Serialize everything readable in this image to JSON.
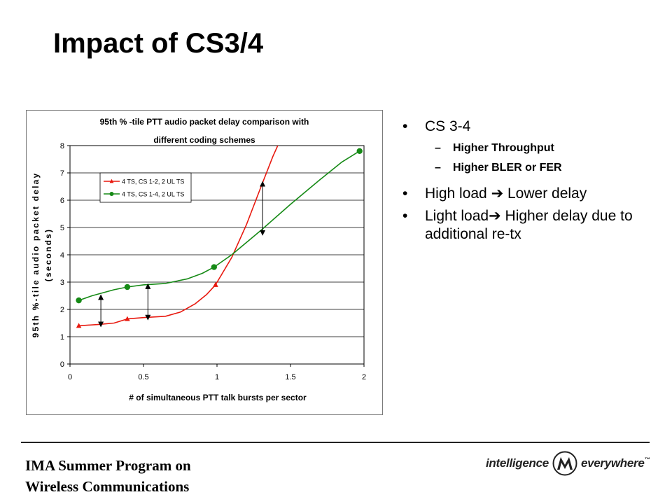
{
  "slide": {
    "title": "Impact of CS3/4",
    "footer": {
      "line1": "IMA Summer Program on",
      "line2": "Wireless Communications"
    },
    "logo": {
      "left_word": "intelligence",
      "right_word": "everywhere",
      "trademark": "™",
      "icon": "motorola-batwing-icon"
    },
    "bullets": [
      {
        "text": "CS 3-4",
        "sub": [
          "Higher Throughput",
          "Higher BLER or FER"
        ]
      },
      {
        "text": "High load  Lower delay",
        "sub": []
      },
      {
        "text": "Light load Higher delay due to additional re-tx",
        "sub": []
      }
    ]
  },
  "bullet_display": {
    "b1": "CS 3-4",
    "b1_sub1": "Higher Throughput",
    "b1_sub2": "Higher BLER or FER",
    "b2_a": "High load ",
    "b2_b": " Lower delay",
    "b3_a": "Light load",
    "b3_b": " Higher delay due to additional re-tx",
    "bullet_glyph": "•",
    "dash_glyph": "–",
    "arrow_glyph": "➔"
  },
  "chart_data": {
    "type": "line",
    "title": "95th % -tile PTT audio packet delay comparison with different coding schemes",
    "title_lines": [
      "95th % -tile PTT audio packet delay comparison with",
      "different coding schemes"
    ],
    "xlabel": "# of simultaneous PTT talk bursts per sector",
    "ylabel_lines": [
      "95th %-tile audio packet delay",
      "(seconds)"
    ],
    "xlim": [
      0,
      2
    ],
    "ylim": [
      0,
      8
    ],
    "xticks": [
      "0",
      "0.5",
      "1",
      "1.5",
      "2"
    ],
    "xtick_values": [
      0,
      0.5,
      1,
      1.5,
      2
    ],
    "yticks": [
      "0",
      "1",
      "2",
      "3",
      "4",
      "5",
      "6",
      "7",
      "8"
    ],
    "ytick_values": [
      0,
      1,
      2,
      3,
      4,
      5,
      6,
      7,
      8
    ],
    "grid": "horizontal",
    "legend_position": "upper-left",
    "series": [
      {
        "name": "4 TS, CS 1-2, 2 UL TS",
        "color": "#e8190f",
        "marker": "triangle",
        "points": [
          [
            0.06,
            1.4
          ],
          [
            0.39,
            1.65
          ],
          [
            0.99,
            2.9
          ]
        ],
        "curve": [
          [
            0.06,
            1.4
          ],
          [
            0.2,
            1.45
          ],
          [
            0.3,
            1.5
          ],
          [
            0.39,
            1.65
          ],
          [
            0.5,
            1.7
          ],
          [
            0.65,
            1.75
          ],
          [
            0.75,
            1.9
          ],
          [
            0.85,
            2.2
          ],
          [
            0.93,
            2.55
          ],
          [
            0.99,
            2.9
          ],
          [
            1.1,
            3.9
          ],
          [
            1.2,
            5.1
          ],
          [
            1.3,
            6.5
          ],
          [
            1.38,
            7.6
          ],
          [
            1.43,
            8.2
          ]
        ]
      },
      {
        "name": "4 TS, CS 1-4, 2 UL TS",
        "color": "#168a16",
        "marker": "circle",
        "points": [
          [
            0.06,
            2.33
          ],
          [
            0.39,
            2.82
          ],
          [
            0.98,
            3.55
          ],
          [
            1.97,
            7.8
          ]
        ],
        "curve": [
          [
            0.06,
            2.33
          ],
          [
            0.15,
            2.5
          ],
          [
            0.3,
            2.72
          ],
          [
            0.39,
            2.82
          ],
          [
            0.5,
            2.9
          ],
          [
            0.65,
            2.95
          ],
          [
            0.8,
            3.12
          ],
          [
            0.9,
            3.32
          ],
          [
            0.98,
            3.55
          ],
          [
            1.1,
            4.0
          ],
          [
            1.3,
            4.9
          ],
          [
            1.5,
            5.85
          ],
          [
            1.7,
            6.75
          ],
          [
            1.85,
            7.4
          ],
          [
            1.97,
            7.8
          ]
        ]
      }
    ],
    "annotations": [
      {
        "type": "double-arrow",
        "x": 0.21,
        "y_from": 1.45,
        "y_to": 2.45
      },
      {
        "type": "double-arrow",
        "x": 0.53,
        "y_from": 1.7,
        "y_to": 2.85
      },
      {
        "type": "double-arrow",
        "x": 1.31,
        "y_from": 4.8,
        "y_to": 6.6
      }
    ]
  }
}
